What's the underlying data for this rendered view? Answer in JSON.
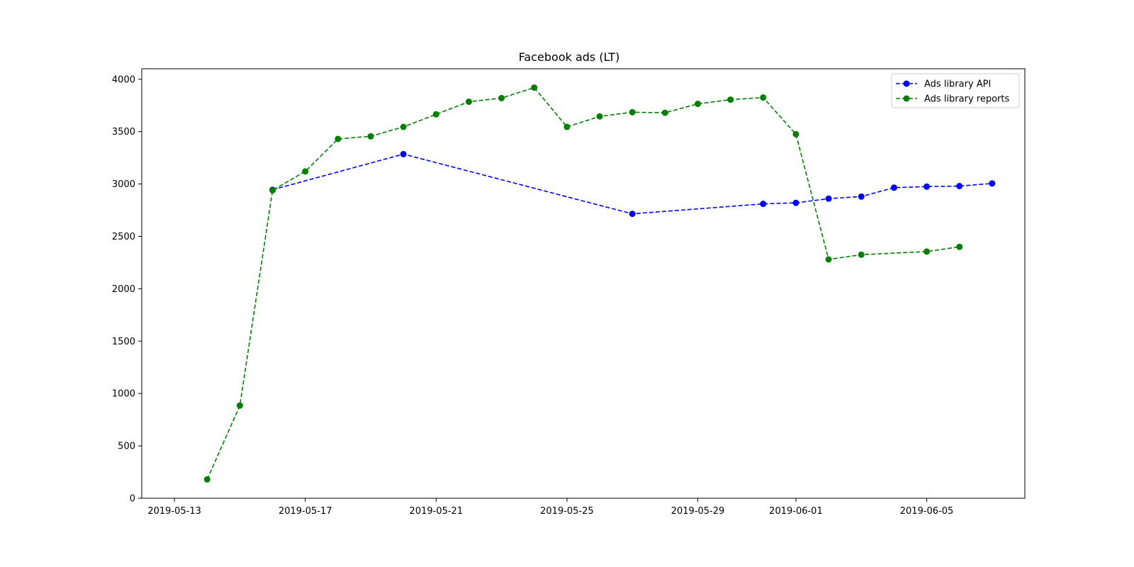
{
  "chart_data": {
    "type": "line",
    "title": "Facebook ads (LT)",
    "xlabel": "",
    "ylabel": "",
    "x_type": "date",
    "xlim": [
      "2019-05-12",
      "2019-06-08"
    ],
    "ylim": [
      0,
      4100
    ],
    "x_ticks": [
      "2019-05-13",
      "2019-05-17",
      "2019-05-21",
      "2019-05-25",
      "2019-05-29",
      "2019-06-01",
      "2019-06-05"
    ],
    "y_ticks": [
      0,
      500,
      1000,
      1500,
      2000,
      2500,
      3000,
      3500,
      4000
    ],
    "grid": false,
    "legend_position": "top-right",
    "series": [
      {
        "name": "Ads library API",
        "color": "#0000ff",
        "line_style": "dashed",
        "marker": "circle",
        "points": [
          {
            "x": "2019-05-16",
            "y": 2945
          },
          {
            "x": "2019-05-20",
            "y": 3285
          },
          {
            "x": "2019-05-27",
            "y": 2715
          },
          {
            "x": "2019-05-31",
            "y": 2810
          },
          {
            "x": "2019-06-01",
            "y": 2820
          },
          {
            "x": "2019-06-02",
            "y": 2860
          },
          {
            "x": "2019-06-03",
            "y": 2880
          },
          {
            "x": "2019-06-04",
            "y": 2965
          },
          {
            "x": "2019-06-05",
            "y": 2975
          },
          {
            "x": "2019-06-06",
            "y": 2980
          },
          {
            "x": "2019-06-07",
            "y": 3005
          }
        ]
      },
      {
        "name": "Ads library reports",
        "color": "#008000",
        "line_style": "dashed",
        "marker": "circle",
        "points": [
          {
            "x": "2019-05-14",
            "y": 180
          },
          {
            "x": "2019-05-15",
            "y": 885
          },
          {
            "x": "2019-05-16",
            "y": 2940
          },
          {
            "x": "2019-05-17",
            "y": 3120
          },
          {
            "x": "2019-05-18",
            "y": 3430
          },
          {
            "x": "2019-05-19",
            "y": 3455
          },
          {
            "x": "2019-05-20",
            "y": 3545
          },
          {
            "x": "2019-05-21",
            "y": 3665
          },
          {
            "x": "2019-05-22",
            "y": 3785
          },
          {
            "x": "2019-05-23",
            "y": 3820
          },
          {
            "x": "2019-05-24",
            "y": 3920
          },
          {
            "x": "2019-05-25",
            "y": 3545
          },
          {
            "x": "2019-05-26",
            "y": 3645
          },
          {
            "x": "2019-05-27",
            "y": 3685
          },
          {
            "x": "2019-05-28",
            "y": 3680
          },
          {
            "x": "2019-05-29",
            "y": 3765
          },
          {
            "x": "2019-05-30",
            "y": 3805
          },
          {
            "x": "2019-05-31",
            "y": 3825
          },
          {
            "x": "2019-06-01",
            "y": 3475
          },
          {
            "x": "2019-06-02",
            "y": 2280
          },
          {
            "x": "2019-06-03",
            "y": 2325
          },
          {
            "x": "2019-06-05",
            "y": 2355
          },
          {
            "x": "2019-06-06",
            "y": 2400
          }
        ]
      }
    ]
  }
}
